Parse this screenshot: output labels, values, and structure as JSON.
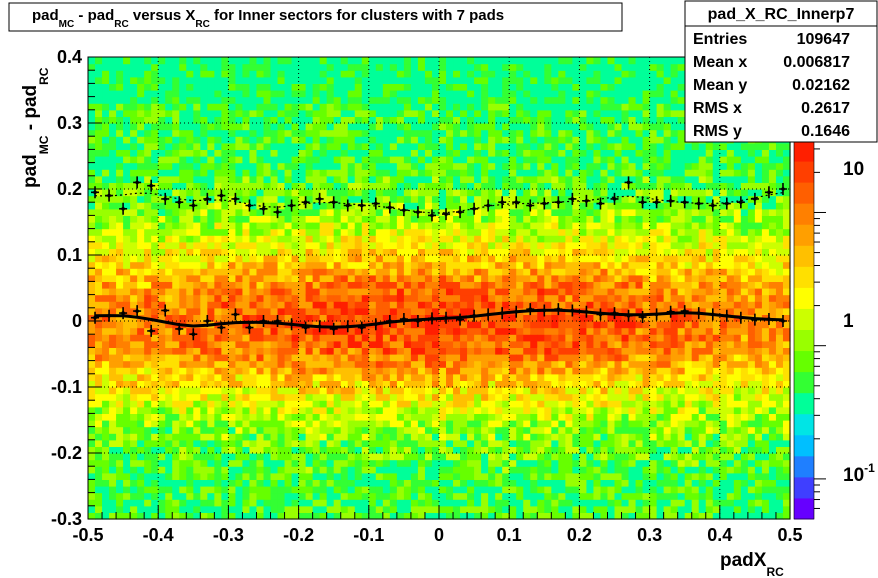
{
  "chart_data": {
    "type": "heatmap",
    "title_parts": [
      "pad",
      "MC",
      " - pad",
      "RC",
      " versus X",
      "RC",
      " for Inner sectors for clusters with 7 pads"
    ],
    "xlabel_main": "padX",
    "xlabel_sub": "RC",
    "ylabel_parts": [
      "pad",
      "MC",
      " - pad",
      "RC"
    ],
    "xlim": [
      -0.5,
      0.5
    ],
    "ylim": [
      -0.3,
      0.4
    ],
    "x_ticks": [
      "-0.5",
      "-0.4",
      "-0.3",
      "-0.2",
      "-0.1",
      "0",
      "0.1",
      "0.2",
      "0.3",
      "0.4",
      "0.5"
    ],
    "y_ticks": [
      "-0.3",
      "-0.2",
      "-0.1",
      "0",
      "0.1",
      "0.2",
      "0.3",
      "0.4"
    ],
    "grid": true,
    "colorbar": {
      "scale": "log",
      "range": [
        0.05,
        35
      ],
      "labels": [
        "10",
        "1",
        "10"
      ],
      "minus_one_exp": "-1"
    },
    "stats": {
      "name": "pad_X_RC_Innerp7",
      "rows": [
        {
          "label": "Entries",
          "value": "109647"
        },
        {
          "label": "Mean x",
          "value": "0.006817"
        },
        {
          "label": "Mean y",
          "value": "0.02162"
        },
        {
          "label": "RMS x",
          "value": "0.2617"
        },
        {
          "label": "RMS y",
          "value": "0.1646"
        }
      ]
    },
    "mean_profile": {
      "x": [
        -0.49,
        -0.47,
        -0.45,
        -0.43,
        -0.41,
        -0.39,
        -0.37,
        -0.35,
        -0.33,
        -0.31,
        -0.29,
        -0.27,
        -0.25,
        -0.23,
        -0.21,
        -0.19,
        -0.17,
        -0.15,
        -0.13,
        -0.11,
        -0.09,
        -0.07,
        -0.05,
        -0.03,
        -0.01,
        0.01,
        0.03,
        0.05,
        0.07,
        0.09,
        0.11,
        0.13,
        0.15,
        0.17,
        0.19,
        0.21,
        0.23,
        0.25,
        0.27,
        0.29,
        0.31,
        0.33,
        0.35,
        0.37,
        0.39,
        0.41,
        0.43,
        0.45,
        0.47,
        0.49
      ],
      "y": [
        0.005,
        0.008,
        0.012,
        0.015,
        -0.015,
        0.016,
        -0.012,
        -0.02,
        0.0,
        -0.01,
        0.01,
        -0.01,
        0.0,
        0.0,
        -0.005,
        -0.01,
        -0.008,
        -0.012,
        -0.008,
        -0.01,
        -0.005,
        0.0,
        0.003,
        0.0,
        0.004,
        0.005,
        0.002,
        0.008,
        0.01,
        0.012,
        0.014,
        0.018,
        0.016,
        0.018,
        0.016,
        0.014,
        0.01,
        0.012,
        0.008,
        0.006,
        0.01,
        0.014,
        0.015,
        0.012,
        0.01,
        0.008,
        0.005,
        0.002,
        0.003,
        0.0
      ]
    },
    "rms_profile": {
      "x": [
        -0.49,
        -0.47,
        -0.45,
        -0.43,
        -0.41,
        -0.39,
        -0.37,
        -0.35,
        -0.33,
        -0.31,
        -0.29,
        -0.27,
        -0.25,
        -0.23,
        -0.21,
        -0.19,
        -0.17,
        -0.15,
        -0.13,
        -0.11,
        -0.09,
        -0.07,
        -0.05,
        -0.03,
        -0.01,
        0.01,
        0.03,
        0.05,
        0.07,
        0.09,
        0.11,
        0.13,
        0.15,
        0.17,
        0.19,
        0.21,
        0.23,
        0.25,
        0.27,
        0.29,
        0.31,
        0.33,
        0.35,
        0.37,
        0.39,
        0.41,
        0.43,
        0.45,
        0.47,
        0.49
      ],
      "y": [
        0.195,
        0.19,
        0.17,
        0.21,
        0.205,
        0.185,
        0.18,
        0.175,
        0.185,
        0.19,
        0.185,
        0.175,
        0.17,
        0.165,
        0.175,
        0.18,
        0.185,
        0.18,
        0.175,
        0.175,
        0.178,
        0.172,
        0.168,
        0.165,
        0.16,
        0.162,
        0.165,
        0.17,
        0.175,
        0.18,
        0.18,
        0.175,
        0.178,
        0.18,
        0.185,
        0.182,
        0.178,
        0.185,
        0.21,
        0.18,
        0.18,
        0.182,
        0.18,
        0.178,
        0.175,
        0.178,
        0.18,
        0.185,
        0.195,
        0.2
      ]
    }
  }
}
